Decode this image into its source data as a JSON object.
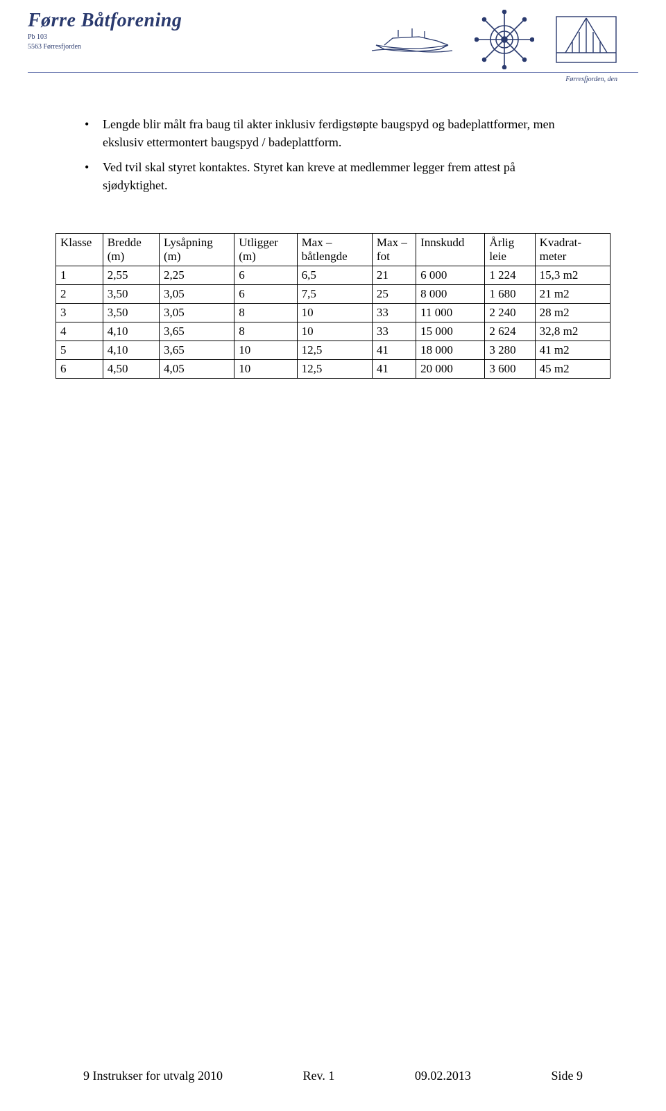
{
  "header": {
    "logo_title": "Førre Båtforening",
    "logo_addr1": "Pb 103",
    "logo_addr2": "5563 Førresfjorden",
    "caption": "Førresfjorden, den"
  },
  "bullets": [
    "Lengde blir målt fra baug til akter inklusiv ferdigstøpte baugspyd og badeplattformer, men ekslusiv ettermontert baugspyd / badeplattform.",
    "Ved tvil skal styret kontaktes. Styret kan kreve at medlemmer legger frem attest på sjødyktighet."
  ],
  "table": {
    "columns": [
      "Klasse",
      "Bredde (m)",
      "Lysåpning (m)",
      "Utligger (m)",
      "Max – båtlengde",
      "Max – fot",
      "Innskudd",
      "Årlig leie",
      "Kvadrat-meter"
    ],
    "rows": [
      [
        "1",
        "2,55",
        "2,25",
        "6",
        "6,5",
        "21",
        "6 000",
        "1 224",
        "15,3 m2"
      ],
      [
        "2",
        "3,50",
        "3,05",
        "6",
        "7,5",
        "25",
        "8 000",
        "1 680",
        "21 m2"
      ],
      [
        "3",
        "3,50",
        "3,05",
        "8",
        "10",
        "33",
        "11 000",
        "2 240",
        "28 m2"
      ],
      [
        "4",
        "4,10",
        "3,65",
        "8",
        "10",
        "33",
        "15 000",
        "2 624",
        "32,8 m2"
      ],
      [
        "5",
        "4,10",
        "3,65",
        "10",
        "12,5",
        "41",
        "18 000",
        "3 280",
        "41 m2"
      ],
      [
        "6",
        "4,50",
        "4,05",
        "10",
        "12,5",
        "41",
        "20 000",
        "3 600",
        "45 m2"
      ]
    ]
  },
  "footer": {
    "left": "9 Instrukser for utvalg 2010",
    "mid": "Rev. 1",
    "date": "09.02.2013",
    "right": "Side 9"
  },
  "colors": {
    "navy": "#2a3a6e",
    "rule": "#7a86b8",
    "text": "#000000",
    "bg": "#ffffff",
    "border": "#000000"
  }
}
